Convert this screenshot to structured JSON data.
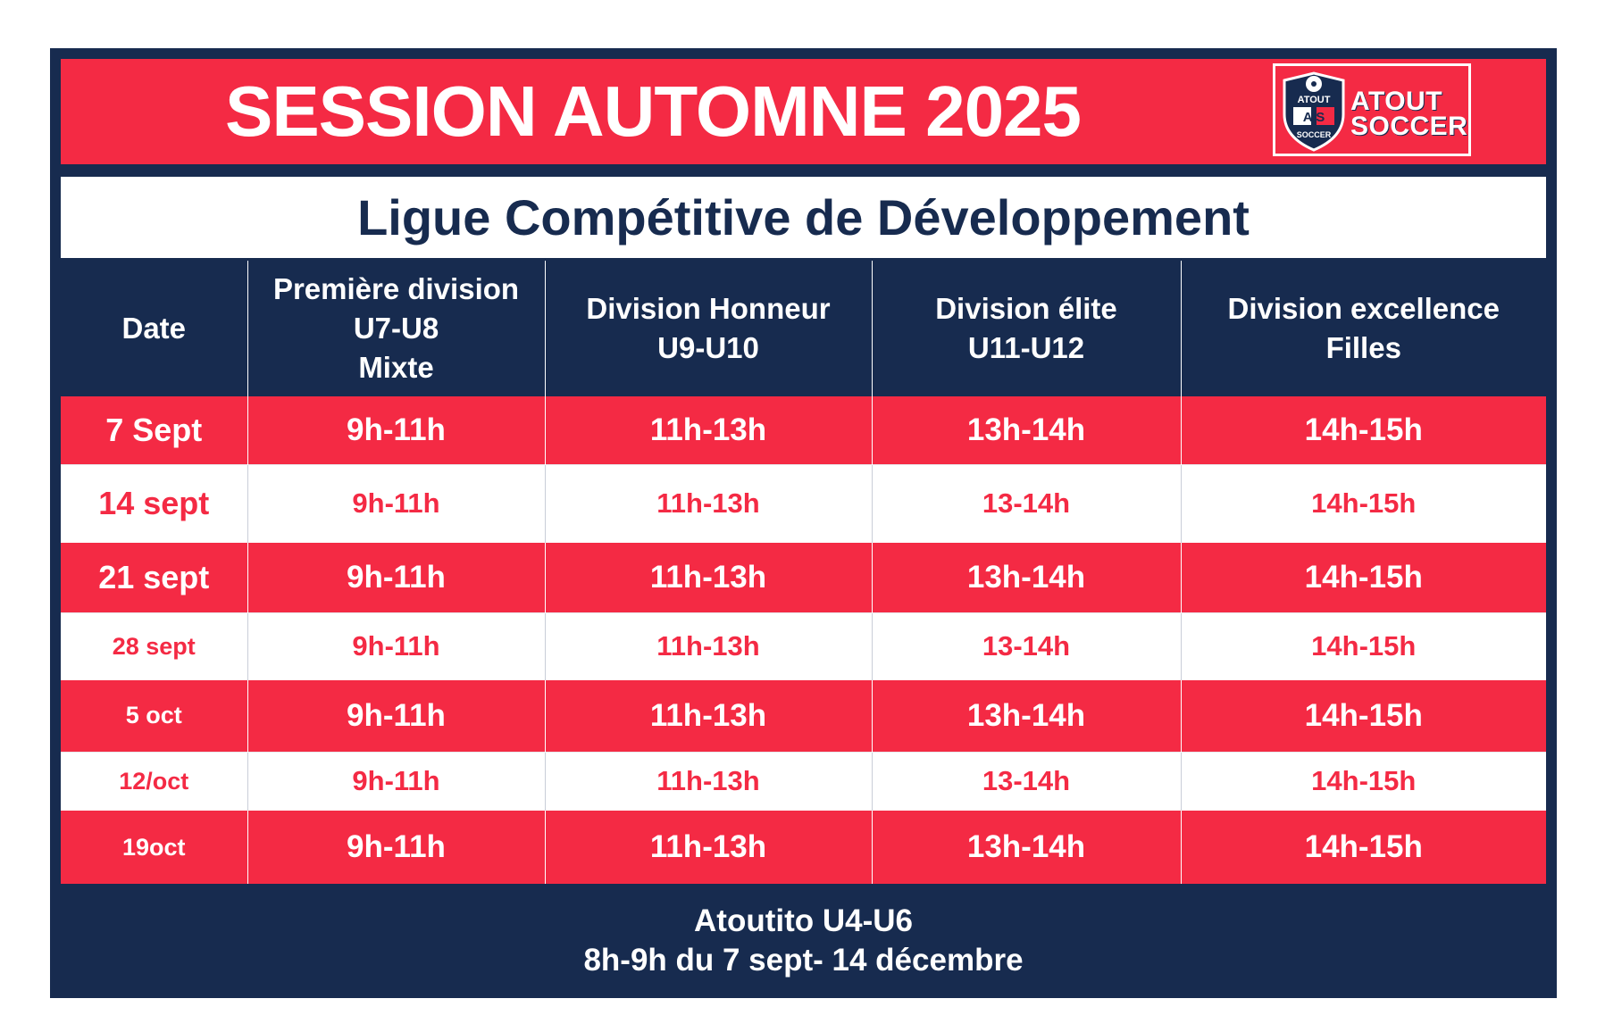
{
  "header": {
    "title": "SESSION AUTOMNE 2025",
    "subtitle": "Ligue Compétitive de Développement"
  },
  "logo": {
    "shield_top": "ATOUT",
    "shield_letters": "A S",
    "shield_bottom": "SOCCER",
    "word_line1": "ATOUT",
    "word_line2": "SOCCER"
  },
  "table": {
    "columns": [
      [
        "Date"
      ],
      [
        "Première division",
        "U7-U8",
        "Mixte"
      ],
      [
        "Division Honneur",
        "U9-U10"
      ],
      [
        "Division élite",
        "U11-U12"
      ],
      [
        "Division excellence",
        "Filles"
      ]
    ],
    "rows": [
      {
        "style": "red",
        "height": 76,
        "date_size": 36,
        "time_size": 35,
        "date": "7 Sept",
        "d1": "9h-11h",
        "d2": "11h-13h",
        "d3": "13h-14h",
        "d4": "14h-15h"
      },
      {
        "style": "white",
        "height": 88,
        "date_size": 36,
        "time_size": 31,
        "date": "14 sept",
        "d1": "9h-11h",
        "d2": "11h-13h",
        "d3": "13-14h",
        "d4": "14h-15h"
      },
      {
        "style": "red",
        "height": 78,
        "date_size": 36,
        "time_size": 35,
        "date": "21 sept",
        "d1": "9h-11h",
        "d2": "11h-13h",
        "d3": "13h-14h",
        "d4": "14h-15h"
      },
      {
        "style": "white",
        "height": 76,
        "date_size": 27,
        "time_size": 31,
        "date": "28 sept",
        "d1": "9h-11h",
        "d2": "11h-13h",
        "d3": "13-14h",
        "d4": "14h-15h"
      },
      {
        "style": "red",
        "height": 80,
        "date_size": 27,
        "time_size": 35,
        "date": "5 oct",
        "d1": "9h-11h",
        "d2": "11h-13h",
        "d3": "13h-14h",
        "d4": "14h-15h"
      },
      {
        "style": "white",
        "height": 66,
        "date_size": 27,
        "time_size": 31,
        "date": "12/oct",
        "d1": "9h-11h",
        "d2": "11h-13h",
        "d3": "13-14h",
        "d4": "14h-15h"
      },
      {
        "style": "red",
        "height": 82,
        "date_size": 27,
        "time_size": 35,
        "date": "19oct",
        "d1": "9h-11h",
        "d2": "11h-13h",
        "d3": "13h-14h",
        "d4": "14h-15h"
      }
    ]
  },
  "footer": {
    "line1": "Atoutito U4-U6",
    "line2": "8h-9h du 7 sept- 14 décembre"
  },
  "colors": {
    "navy": "#172b4f",
    "red": "#f42a44",
    "white": "#ffffff"
  }
}
